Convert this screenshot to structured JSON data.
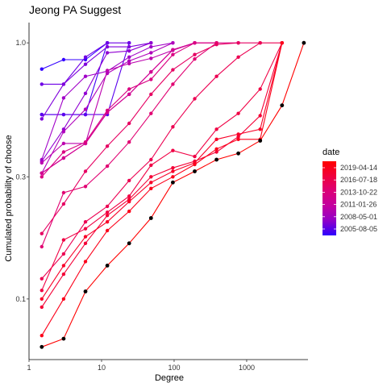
{
  "chart_data": {
    "type": "line",
    "title": "Jeong PA Suggest",
    "xlabel": "Degree",
    "ylabel": "Cumulated probability of choose",
    "x_scale": "log10",
    "y_scale": "log10",
    "xlim": [
      1,
      7000
    ],
    "ylim": [
      0.058,
      1.2
    ],
    "x_ticks": [
      {
        "value": 1,
        "label": "1"
      },
      {
        "value": 10,
        "label": "10"
      },
      {
        "value": 100,
        "label": "100"
      },
      {
        "value": 1000,
        "label": "1000"
      }
    ],
    "y_ticks": [
      {
        "value": 0.1,
        "label": "0.1"
      },
      {
        "value": 0.3,
        "label": "0.3"
      },
      {
        "value": 1.0,
        "label": "1.0"
      }
    ],
    "grid": false,
    "legend": {
      "title": "date",
      "position": "right",
      "entries": [
        "2019-04-14",
        "2016-07-18",
        "2013-10-22",
        "2011-01-26",
        "2008-05-01",
        "2005-08-05"
      ],
      "colors": [
        "#FF0000",
        "#F0003C",
        "#DC0078",
        "#C300A0",
        "#9100C8",
        "#2D00FF"
      ]
    },
    "series": [
      {
        "color": "#3300FF",
        "x": [
          1.5,
          3,
          6,
          12
        ],
        "y": [
          0.79,
          0.86,
          0.86,
          1.0
        ]
      },
      {
        "color": "#3F00F6",
        "x": [
          1.5,
          3,
          6,
          12
        ],
        "y": [
          0.525,
          0.525,
          0.525,
          1.0
        ]
      },
      {
        "color": "#5A00EE",
        "x": [
          1.5,
          3,
          6,
          12,
          24
        ],
        "y": [
          0.525,
          0.525,
          0.525,
          0.525,
          1.0
        ]
      },
      {
        "color": "#6E00E6",
        "x": [
          1.5,
          3,
          6,
          12,
          24
        ],
        "y": [
          0.69,
          0.69,
          0.88,
          1.0,
          1.0
        ]
      },
      {
        "color": "#7F00DC",
        "x": [
          1.5,
          3,
          6,
          12,
          24,
          48
        ],
        "y": [
          0.505,
          0.69,
          0.825,
          0.965,
          0.965,
          1.0
        ]
      },
      {
        "color": "#9000D2",
        "x": [
          1.5,
          3,
          6,
          12,
          24,
          48
        ],
        "y": [
          0.345,
          0.46,
          0.635,
          0.915,
          0.93,
          1.0
        ]
      },
      {
        "color": "#A000C8",
        "x": [
          1.5,
          3,
          6,
          12,
          24,
          48,
          96
        ],
        "y": [
          0.35,
          0.61,
          0.74,
          0.775,
          0.88,
          0.965,
          1.0
        ]
      },
      {
        "color": "#AF00BB",
        "x": [
          1.5,
          3,
          6,
          12,
          24,
          48,
          96
        ],
        "y": [
          0.31,
          0.45,
          0.55,
          0.76,
          0.85,
          0.915,
          1.0
        ]
      },
      {
        "color": "#BC00AE",
        "x": [
          1.5,
          3,
          6,
          12,
          24,
          48,
          96,
          192
        ],
        "y": [
          0.34,
          0.405,
          0.405,
          0.78,
          0.83,
          0.87,
          0.935,
          1.0
        ]
      },
      {
        "color": "#C700A0",
        "x": [
          1.5,
          3,
          6,
          12,
          24,
          48,
          96,
          192
        ],
        "y": [
          0.31,
          0.355,
          0.405,
          0.535,
          0.63,
          0.77,
          0.94,
          1.0
        ]
      },
      {
        "color": "#D20091",
        "x": [
          1.5,
          3,
          6,
          12,
          24,
          48,
          96,
          192,
          384
        ],
        "y": [
          0.31,
          0.355,
          0.405,
          0.535,
          0.63,
          0.77,
          0.94,
          1.0,
          1.0
        ]
      },
      {
        "color": "#DA0082",
        "x": [
          1.5,
          3,
          6,
          12,
          24,
          48,
          96,
          192,
          384,
          768
        ],
        "y": [
          0.3,
          0.375,
          0.41,
          0.545,
          0.66,
          0.72,
          0.9,
          1.0,
          1.0,
          1.0
        ]
      },
      {
        "color": "#E10072",
        "x": [
          1.5,
          3,
          6,
          12,
          24,
          48,
          96,
          192,
          384
        ],
        "y": [
          0.16,
          0.26,
          0.275,
          0.33,
          0.41,
          0.53,
          0.69,
          0.865,
          1.0
        ]
      },
      {
        "color": "#E60062",
        "x": [
          1.5,
          3,
          6,
          12,
          24,
          48,
          96,
          192,
          384,
          768,
          1536
        ],
        "y": [
          0.18,
          0.235,
          0.315,
          0.395,
          0.485,
          0.63,
          0.785,
          0.9,
          0.985,
          1.0,
          1.0
        ]
      },
      {
        "color": "#EC0052",
        "x": [
          1.5,
          3,
          6,
          12,
          24,
          48,
          96,
          192,
          384,
          768,
          1536,
          3072
        ],
        "y": [
          0.12,
          0.15,
          0.2,
          0.23,
          0.29,
          0.35,
          0.47,
          0.605,
          0.74,
          0.88,
          1.0,
          1.0
        ]
      },
      {
        "color": "#F00044",
        "x": [
          1.5,
          3,
          6,
          12,
          24,
          48,
          96,
          192,
          384,
          768,
          1536,
          3072
        ],
        "y": [
          0.108,
          0.17,
          0.188,
          0.218,
          0.252,
          0.333,
          0.38,
          0.36,
          0.46,
          0.53,
          0.66,
          1.0
        ]
      },
      {
        "color": "#F40036",
        "x": [
          1.5,
          3,
          6,
          12,
          24,
          48,
          96,
          192,
          384,
          768,
          1536,
          3072
        ],
        "y": [
          0.093,
          0.125,
          0.165,
          0.212,
          0.245,
          0.3,
          0.325,
          0.345,
          0.375,
          0.43,
          0.52,
          1.0
        ]
      },
      {
        "color": "#F80028",
        "x": [
          1.5,
          3,
          6,
          12,
          24,
          48,
          96,
          192,
          384,
          768,
          1536,
          3072
        ],
        "y": [
          0.1,
          0.135,
          0.175,
          0.2,
          0.24,
          0.285,
          0.315,
          0.34,
          0.42,
          0.44,
          0.46,
          1.0
        ]
      },
      {
        "color": "#FC001A",
        "x": [
          1.5,
          3,
          6,
          12,
          24,
          48,
          96,
          192,
          384,
          768,
          1536,
          3072
        ],
        "y": [
          0.072,
          0.1,
          0.14,
          0.185,
          0.22,
          0.27,
          0.3,
          0.335,
          0.385,
          0.42,
          0.42,
          1.0
        ]
      },
      {
        "color": "#FF0000",
        "x": [
          1.5,
          3,
          6,
          12,
          24,
          48,
          96,
          192,
          384,
          768,
          1536,
          3072,
          6144
        ],
        "y": [
          0.065,
          0.07,
          0.107,
          0.135,
          0.165,
          0.207,
          0.285,
          0.315,
          0.35,
          0.37,
          0.415,
          0.57,
          1.0
        ]
      }
    ],
    "highlight_points": {
      "color": "#000000",
      "x": [
        1.5,
        3,
        6,
        12,
        24,
        48,
        96,
        192,
        384,
        768,
        1536,
        3072,
        6144
      ],
      "y": [
        0.065,
        0.07,
        0.107,
        0.135,
        0.165,
        0.207,
        0.285,
        0.315,
        0.35,
        0.37,
        0.415,
        0.57,
        1.0
      ]
    }
  }
}
